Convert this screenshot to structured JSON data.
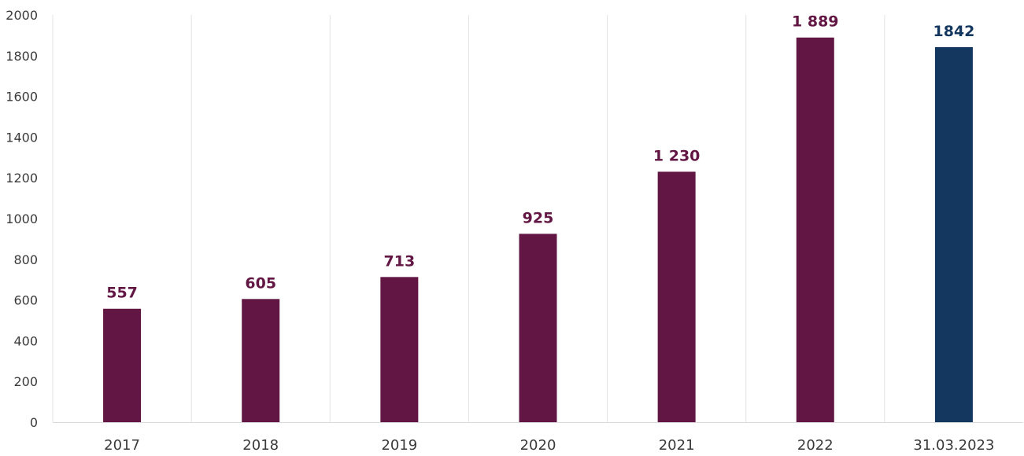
{
  "chart_data": {
    "type": "bar",
    "categories": [
      "2017",
      "2018",
      "2019",
      "2020",
      "2021",
      "2022",
      "31.03.2023"
    ],
    "values": [
      557,
      605,
      713,
      925,
      1230,
      1889,
      1842
    ],
    "data_labels": [
      "557",
      "605",
      "713",
      "925",
      "1 230",
      "1 889",
      "1842"
    ],
    "ylim": [
      0,
      2000
    ],
    "yticks": [
      0,
      200,
      400,
      600,
      800,
      1000,
      1200,
      1400,
      1600,
      1800,
      2000
    ],
    "ytick_labels": [
      "0",
      "200",
      "400",
      "600",
      "800",
      "1000",
      "1200",
      "1400",
      "1600",
      "1800",
      "2000"
    ],
    "title": "",
    "xlabel": "",
    "ylabel": "",
    "grid": false,
    "legend": "none",
    "colors": {
      "bar": "#621643",
      "bar_highlight": "#14375f",
      "label": "#621643",
      "label_highlight": "#14375f"
    },
    "highlight_index": 6
  }
}
